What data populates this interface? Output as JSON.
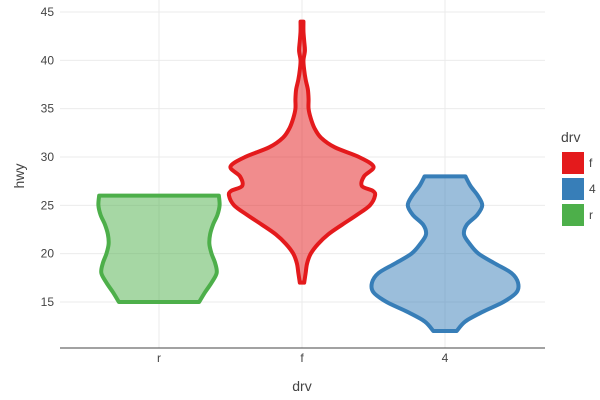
{
  "chart_data": {
    "type": "violin",
    "xlabel": "drv",
    "ylabel": "hwy",
    "categories": [
      "r",
      "f",
      "4"
    ],
    "ylim": [
      10.4,
      45
    ],
    "yticks": [
      15,
      20,
      25,
      30,
      35,
      40,
      45
    ],
    "grid": true,
    "legend": {
      "title": "drv",
      "position": "right",
      "entries": [
        "f",
        "4",
        "r"
      ]
    },
    "series": [
      {
        "name": "r",
        "color": "#4daf4a",
        "y_range": [
          15,
          26
        ],
        "density_profile": [
          [
            15,
            0.55
          ],
          [
            16,
            0.63
          ],
          [
            17,
            0.72
          ],
          [
            18,
            0.79
          ],
          [
            19,
            0.77
          ],
          [
            20,
            0.72
          ],
          [
            21,
            0.69
          ],
          [
            22,
            0.7
          ],
          [
            23,
            0.74
          ],
          [
            24,
            0.8
          ],
          [
            25,
            0.83
          ],
          [
            26,
            0.82
          ]
        ]
      },
      {
        "name": "f",
        "color": "#e41a1c",
        "y_range": [
          17,
          44
        ],
        "density_profile": [
          [
            17,
            0.03
          ],
          [
            18,
            0.05
          ],
          [
            19,
            0.07
          ],
          [
            20,
            0.12
          ],
          [
            21,
            0.22
          ],
          [
            22,
            0.36
          ],
          [
            23,
            0.55
          ],
          [
            24,
            0.75
          ],
          [
            25,
            0.93
          ],
          [
            26,
            1.0
          ],
          [
            26.5,
            0.97
          ],
          [
            27,
            0.82
          ],
          [
            28,
            0.85
          ],
          [
            29,
            0.98
          ],
          [
            30,
            0.78
          ],
          [
            31,
            0.45
          ],
          [
            32,
            0.26
          ],
          [
            33,
            0.17
          ],
          [
            34,
            0.12
          ],
          [
            35,
            0.09
          ],
          [
            36,
            0.09
          ],
          [
            37,
            0.08
          ],
          [
            38,
            0.05
          ],
          [
            39,
            0.03
          ],
          [
            40,
            0.02
          ],
          [
            41,
            0.04
          ],
          [
            42,
            0.03
          ],
          [
            43,
            0.02
          ],
          [
            44,
            0.02
          ]
        ]
      },
      {
        "name": "4",
        "color": "#377eb8",
        "y_range": [
          12,
          28
        ],
        "density_profile": [
          [
            12,
            0.16
          ],
          [
            13,
            0.28
          ],
          [
            14,
            0.52
          ],
          [
            15,
            0.8
          ],
          [
            16,
            0.98
          ],
          [
            17,
            1.0
          ],
          [
            18,
            0.91
          ],
          [
            19,
            0.68
          ],
          [
            20,
            0.46
          ],
          [
            21,
            0.34
          ],
          [
            22,
            0.26
          ],
          [
            23,
            0.3
          ],
          [
            24,
            0.44
          ],
          [
            25,
            0.51
          ],
          [
            26,
            0.45
          ],
          [
            27,
            0.35
          ],
          [
            28,
            0.28
          ]
        ]
      }
    ]
  }
}
